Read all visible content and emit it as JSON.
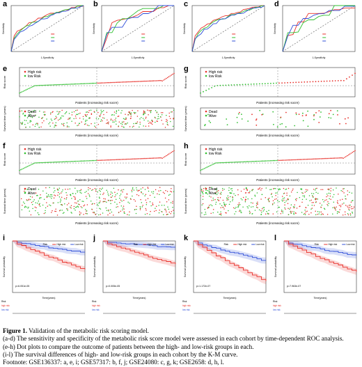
{
  "panel_letters": {
    "a": "a",
    "b": "b",
    "c": "c",
    "d": "d",
    "e": "e",
    "f": "f",
    "g": "g",
    "h": "h",
    "i": "i",
    "j": "j",
    "k": "k",
    "l": "l"
  },
  "axis_labels": {
    "roc_x": "1-Specificity",
    "roc_y": "Sensitivity",
    "risk_y": "Risk score",
    "surv_y": "Survival time (years)",
    "dot_x": "Patients (increasing risk socre)",
    "km_y": "Survival probability",
    "km_x": "Time(years)"
  },
  "legends": {
    "high_risk": "High risk",
    "low_risk": "low Risk",
    "dead": "Dead",
    "alive": "Alive",
    "risk_word": "Risk",
    "km_high": "High risk",
    "km_low": "Low risk",
    "risk_high_row": "high risk",
    "risk_low_row": "low risk",
    "risk_table": "Risk"
  },
  "km_pvalues": {
    "i": "p=6.051e-05",
    "j": "p=0.005e-05",
    "k": "p=1.172e-07",
    "l": "p=7.963e-07"
  },
  "colors": {
    "red": "#e8302a",
    "green": "#2fbf2f",
    "blue": "#2f4fd8",
    "gray": "#888888"
  },
  "caption": {
    "title_bold": "Figure 1.",
    "title_rest": " Validation of the metabolic risk scoring model.",
    "lines": [
      "(a-d) The sensitivity and specificity of the metabolic risk score model were assessed in each cohort by time-dependent ROC analysis.",
      "(e-h) Dot plots to compare the outcome of patients between the high- and low-risk groups in each.",
      "(i-l) The survival differences of high- and low-risk groups in each cohort by the K-M curve.",
      "Footnote: GSE136337: a, e, i; GSE57317: b, f, j; GSE24080: c, g, k; GSE2658: d, h, l."
    ]
  }
}
